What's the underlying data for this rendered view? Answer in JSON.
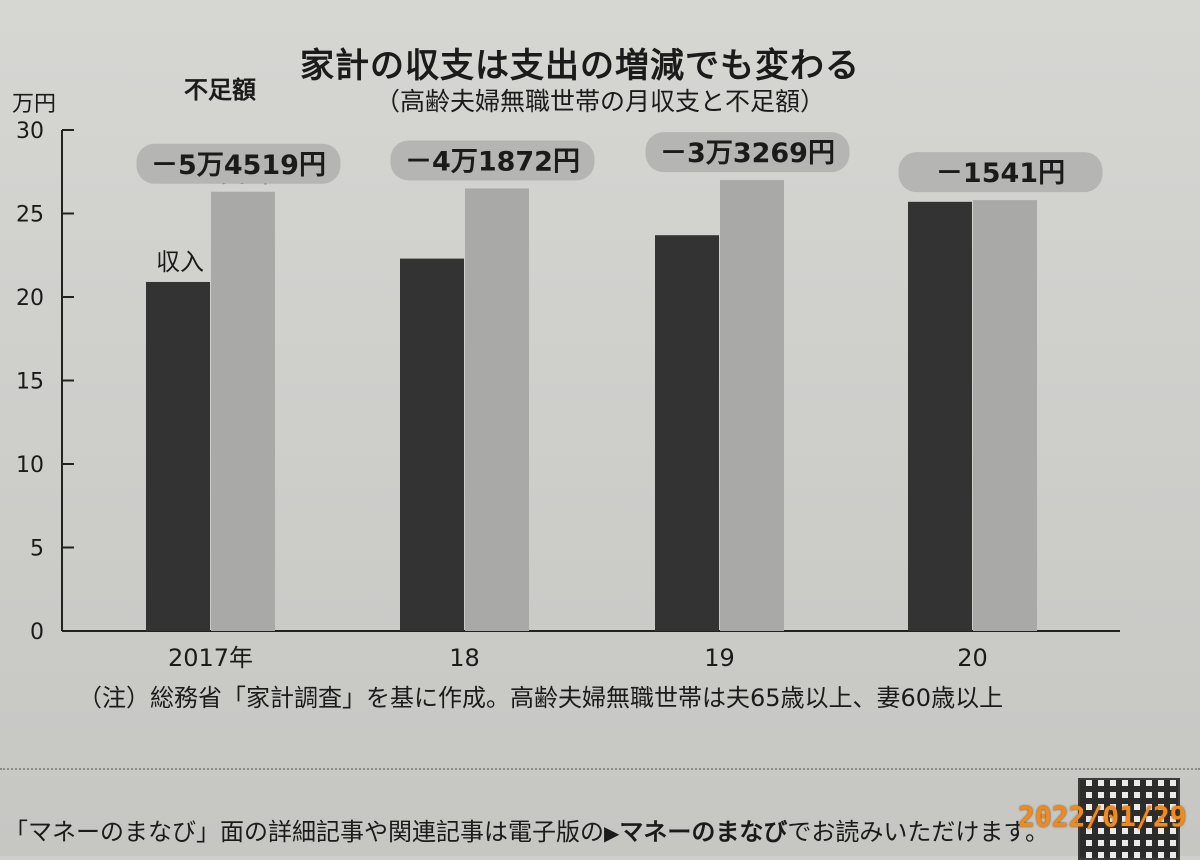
{
  "chart_data": {
    "type": "bar",
    "title": "家計の収支は支出の増減でも変わる",
    "subtitle": "（高齢夫婦無職世帯の月収支と不足額）",
    "ylabel": "万円",
    "ylim": [
      0,
      30
    ],
    "yticks": [
      "0",
      "5",
      "10",
      "15",
      "20",
      "25",
      "30"
    ],
    "categories": [
      "2017年",
      "18",
      "19",
      "20"
    ],
    "series": [
      {
        "name": "収入",
        "values": [
          20.9,
          22.3,
          23.7,
          25.7
        ],
        "color": "#333333"
      },
      {
        "name": "支出",
        "values": [
          26.3,
          26.5,
          27.0,
          25.8
        ],
        "color": "#a9aaa8"
      }
    ],
    "deficit_title": "不足額",
    "deficit_labels": [
      "－5万4519円",
      "－4万1872円",
      "－3万3269円",
      "－1541円"
    ],
    "grid": false
  },
  "note": "（注）総務省「家計調査」を基に作成。高齢夫婦無職世帯は夫65歳以上、妻60歳以上",
  "footer": {
    "text_before": "「マネーのまなび」面の詳細記事や関連記事は電子版の",
    "arrow": "▶",
    "link_text": "マネーのまなび",
    "text_after": "でお読みいただけます。"
  },
  "date_stamp": "2022/01/29"
}
